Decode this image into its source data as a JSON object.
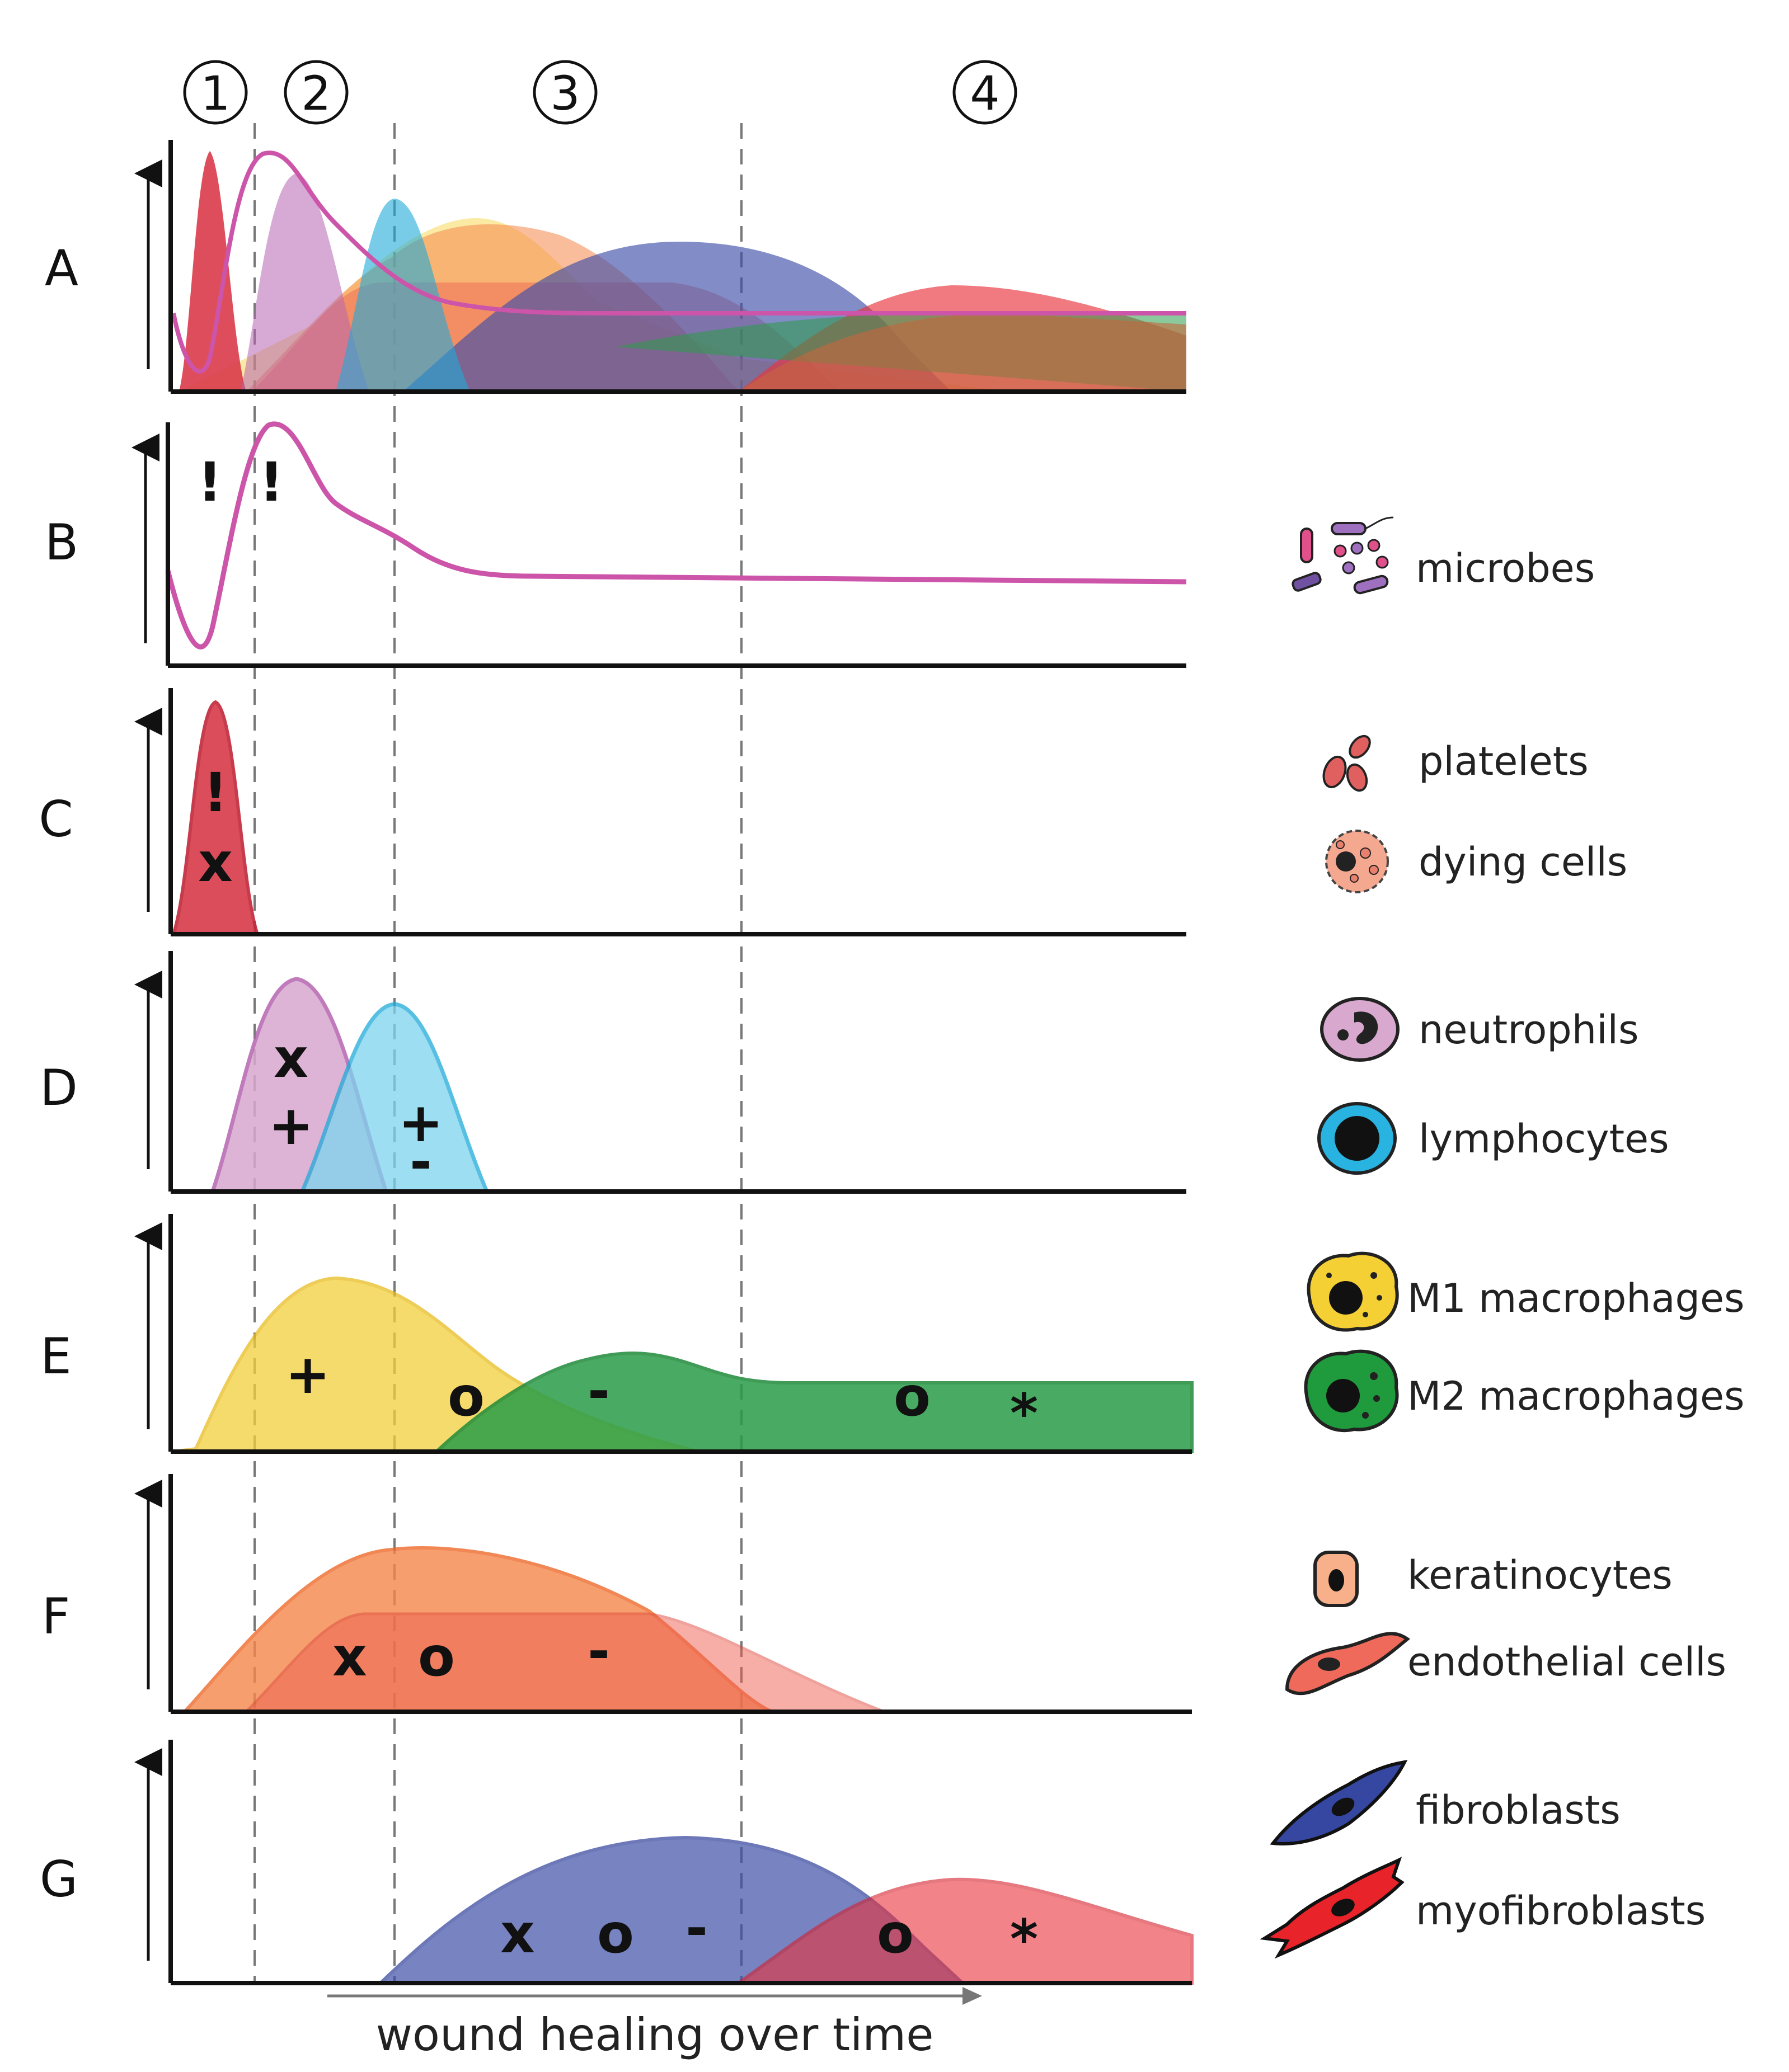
{
  "phases": [
    "①",
    "②",
    "③",
    "④"
  ],
  "rows": [
    {
      "letter": "A",
      "description": "overlay of all populations"
    },
    {
      "letter": "B",
      "description": "microbes",
      "marks": [
        "!",
        "!"
      ]
    },
    {
      "letter": "C",
      "description": "platelets / dying cells",
      "marks": [
        "!",
        "x"
      ]
    },
    {
      "letter": "D",
      "description": "neutrophils / lymphocytes",
      "marks": [
        "x",
        "+",
        "+",
        "-"
      ]
    },
    {
      "letter": "E",
      "description": "M1 / M2 macrophages",
      "marks": [
        "+",
        "o",
        "-",
        "o",
        "*"
      ]
    },
    {
      "letter": "F",
      "description": "keratinocytes / endothelial cells",
      "marks": [
        "x",
        "o",
        "-"
      ]
    },
    {
      "letter": "G",
      "description": "fibroblasts / myofibroblasts",
      "marks": [
        "x",
        "o",
        "-",
        "o",
        "*"
      ]
    }
  ],
  "legend": [
    {
      "label": "microbes",
      "color": "#cc55aa",
      "icon": "microbes-icon"
    },
    {
      "label": "platelets",
      "color": "#e06060",
      "icon": "platelets-icon"
    },
    {
      "label": "dying cells",
      "color": "#f4a890",
      "icon": "dying-cells-icon"
    },
    {
      "label": "neutrophils",
      "color": "#d9a8cf",
      "icon": "neutrophil-icon"
    },
    {
      "label": "lymphocytes",
      "color": "#29b3e0",
      "icon": "lymphocyte-icon"
    },
    {
      "label": "M1 macrophages",
      "color": "#f5d035",
      "icon": "m1-macrophage-icon"
    },
    {
      "label": "M2 macrophages",
      "color": "#1f9a3c",
      "icon": "m2-macrophage-icon"
    },
    {
      "label": "keratinocytes",
      "color": "#f8b08a",
      "icon": "keratinocyte-icon"
    },
    {
      "label": "endothelial cells",
      "color": "#ef6a5a",
      "icon": "endothelial-cell-icon"
    },
    {
      "label": "fibroblasts",
      "color": "#3547a0",
      "icon": "fibroblast-icon"
    },
    {
      "label": "myofibroblasts",
      "color": "#e8232a",
      "icon": "myofibroblast-icon"
    }
  ],
  "x_axis_label": "wound healing over time",
  "colors": {
    "axis": "#111111",
    "divider": "#777777",
    "microbes": "#cc55aa",
    "platelets": "#d93a4a",
    "neutrophils": "#b565b0",
    "lymphocytes": "#20aad8",
    "m1": "#f2cf3a",
    "m2": "#2a9d48",
    "keratinocytes": "#f4874b",
    "endothelial": "#ee5f52",
    "fibroblasts": "#3f4fa8",
    "myofibroblasts": "#e8323c"
  }
}
